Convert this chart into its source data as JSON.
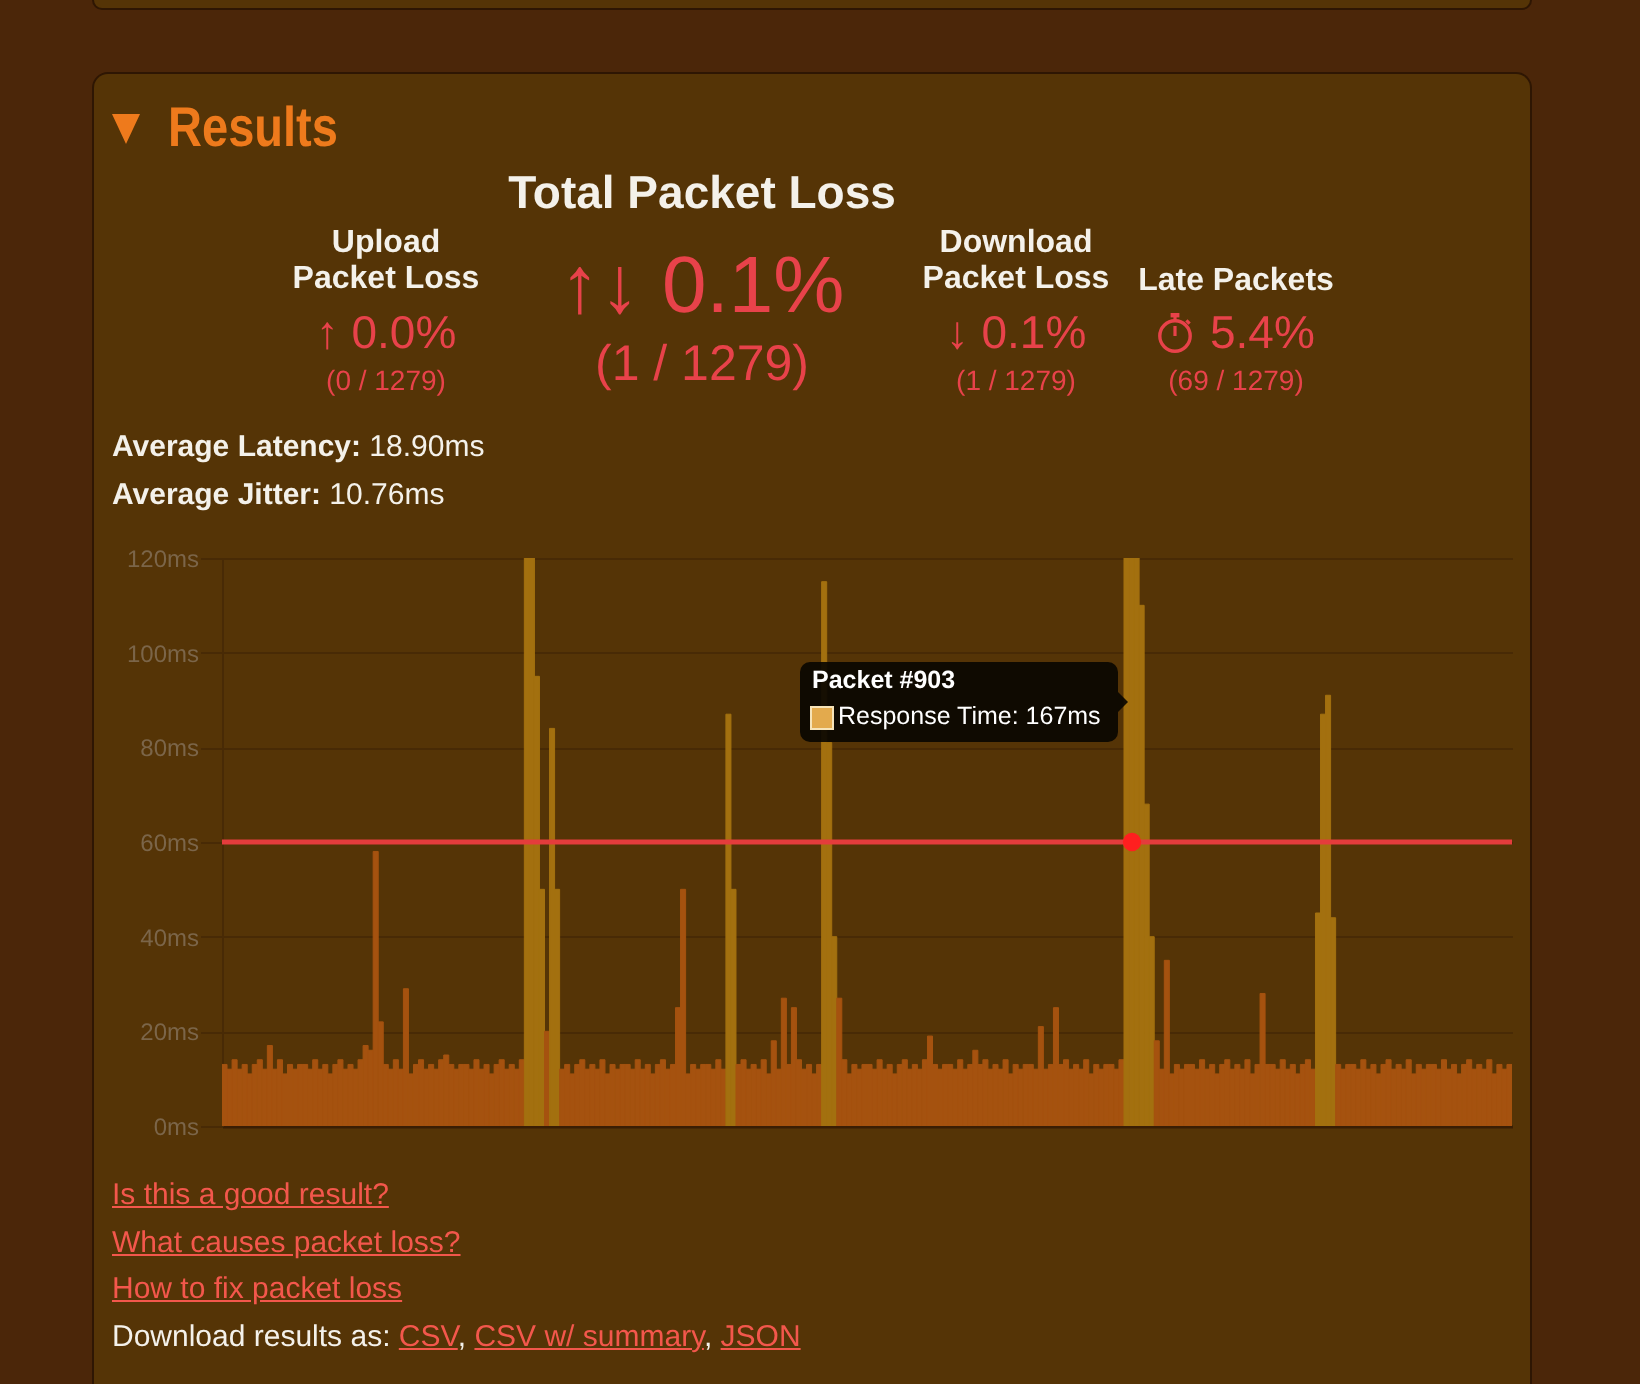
{
  "chart_data": {
    "type": "bar",
    "title": "Results",
    "annotations": [
      "Total Packet Loss",
      "↑↓ 0.1%",
      "(1 / 1279)",
      "Upload Packet Loss",
      "↑ 0.0%",
      "(0 / 1279)",
      "Download Packet Loss",
      "↓ 0.1%",
      "(1 / 1279)",
      "Late Packets",
      "5.4%",
      "(69 / 1279)",
      "Average Latency: 18.90ms",
      "Average Jitter: 10.76ms",
      "Packet #903",
      "Response Time: 167ms",
      "Is this a good result?",
      "What causes packet loss?",
      "How to fix packet loss",
      "Download results as: CSV, CSV w/ summary, JSON"
    ],
    "categories": [
      null,
      null,
      null,
      null,
      null,
      null,
      null,
      null,
      null,
      null,
      null,
      null,
      null,
      null,
      null,
      null,
      null,
      null,
      null,
      null,
      null,
      null,
      null,
      null,
      null,
      null,
      null,
      null,
      null,
      null,
      null,
      null,
      null,
      null,
      null,
      null,
      null,
      null,
      null,
      null,
      null,
      null,
      null,
      null,
      null,
      null,
      null,
      null,
      null,
      null,
      null,
      null,
      null,
      null,
      null,
      null,
      null,
      null,
      null,
      null,
      null,
      null,
      null,
      null,
      null,
      null,
      null,
      null,
      null,
      null,
      null,
      null,
      null,
      null,
      null,
      null,
      null,
      null,
      null,
      null,
      null,
      null,
      null,
      null,
      null,
      null,
      null,
      null,
      null,
      null,
      null,
      null,
      null,
      null,
      null,
      null,
      null,
      null,
      null,
      null,
      null,
      null,
      null,
      null,
      null,
      null,
      null,
      null,
      null,
      null,
      null,
      null,
      null,
      null,
      null,
      null,
      null,
      null,
      null,
      null,
      null,
      null,
      null,
      null,
      null,
      null,
      null,
      null,
      null,
      null,
      null,
      null,
      null,
      null,
      null,
      null,
      null,
      null,
      null,
      null,
      null,
      null,
      null,
      null,
      null,
      null,
      null,
      null,
      null,
      null,
      null,
      null,
      null,
      null,
      null,
      null,
      null,
      null,
      null,
      null,
      null,
      null,
      null,
      null,
      null,
      null,
      null,
      null,
      null,
      null,
      null,
      null,
      null,
      null,
      null,
      null,
      null,
      null,
      null,
      null,
      null,
      null,
      null,
      null,
      null,
      null,
      null,
      null,
      null,
      null,
      null,
      null,
      null,
      null,
      null,
      null,
      null,
      null,
      null,
      null,
      null,
      null,
      null,
      null,
      null,
      null,
      null,
      null,
      null,
      null,
      null,
      null,
      null,
      null,
      null,
      null,
      null,
      null,
      null,
      null,
      null,
      null,
      null,
      null,
      null,
      null,
      null,
      null,
      null,
      null,
      null,
      null,
      null,
      null,
      null,
      null,
      null,
      null,
      null,
      null,
      null,
      null,
      null,
      null,
      null,
      null,
      null,
      null,
      null,
      null,
      null,
      null,
      null,
      null,
      null,
      null
    ],
    "values": [
      13,
      12,
      14,
      12,
      13,
      11,
      13,
      14,
      12,
      17,
      12,
      14,
      11,
      13,
      12,
      13,
      13,
      12,
      14,
      12,
      13,
      11,
      13,
      14,
      12,
      13,
      12,
      14,
      17,
      16,
      58,
      22,
      13,
      12,
      14,
      12,
      29,
      11,
      13,
      14,
      12,
      13,
      12,
      14,
      15,
      13,
      12,
      13,
      13,
      12,
      14,
      12,
      13,
      11,
      13,
      14,
      12,
      13,
      12,
      14,
      120,
      120,
      95,
      50,
      20,
      84,
      50,
      12,
      13,
      11,
      13,
      14,
      12,
      13,
      12,
      14,
      11,
      13,
      12,
      13,
      13,
      12,
      14,
      12,
      13,
      11,
      13,
      14,
      12,
      13,
      25,
      50,
      11,
      13,
      12,
      13,
      13,
      12,
      14,
      12,
      87,
      50,
      13,
      14,
      12,
      13,
      12,
      14,
      11,
      18,
      12,
      27,
      13,
      25,
      14,
      12,
      13,
      11,
      13,
      115,
      81,
      40,
      27,
      14,
      11,
      13,
      12,
      13,
      13,
      12,
      14,
      12,
      13,
      11,
      13,
      14,
      12,
      13,
      12,
      14,
      19,
      13,
      12,
      13,
      13,
      12,
      14,
      12,
      13,
      16,
      13,
      14,
      12,
      13,
      12,
      14,
      11,
      13,
      12,
      13,
      13,
      12,
      21,
      12,
      13,
      25,
      13,
      14,
      12,
      13,
      12,
      14,
      11,
      13,
      12,
      13,
      13,
      12,
      14,
      120,
      120,
      120,
      110,
      68,
      40,
      18,
      12,
      35,
      11,
      13,
      12,
      13,
      13,
      12,
      14,
      12,
      13,
      11,
      13,
      14,
      12,
      13,
      12,
      14,
      11,
      13,
      28,
      13,
      13,
      12,
      14,
      12,
      13,
      11,
      13,
      14,
      12,
      45,
      87,
      91,
      44,
      13,
      12,
      13,
      13,
      12,
      14,
      12,
      13,
      11,
      13,
      14,
      12,
      13,
      12,
      14,
      11,
      13,
      12,
      13,
      13,
      12,
      14,
      12,
      13,
      11,
      13,
      14,
      12,
      13,
      12,
      14,
      11,
      13,
      12,
      13
    ],
    "colors": [
      "#a5520f",
      "#a5520f",
      "#a5520f",
      "#a5520f",
      "#a5520f",
      "#a5520f",
      "#a5520f",
      "#a5520f",
      "#a5520f",
      "#a5520f",
      "#a5520f",
      "#a5520f",
      "#a5520f",
      "#a5520f",
      "#a5520f",
      "#a5520f",
      "#a5520f",
      "#a5520f",
      "#a5520f",
      "#a5520f",
      "#a5520f",
      "#a5520f",
      "#a5520f",
      "#a5520f",
      "#a5520f",
      "#a5520f",
      "#a5520f",
      "#a5520f",
      "#a5520f",
      "#a5520f",
      "#a5520f",
      "#a5520f",
      "#a5520f",
      "#a5520f",
      "#a5520f",
      "#a5520f",
      "#a5520f",
      "#a5520f",
      "#a5520f",
      "#a5520f",
      "#a5520f",
      "#a5520f",
      "#a5520f",
      "#a5520f",
      "#a5520f",
      "#a5520f",
      "#a5520f",
      "#a5520f",
      "#a5520f",
      "#a5520f",
      "#a5520f",
      "#a5520f",
      "#a5520f",
      "#a5520f",
      "#a5520f",
      "#a5520f",
      "#a5520f",
      "#a5520f",
      "#a5520f",
      "#a5520f",
      "#a3700f",
      "#a3700f",
      "#a3700f",
      "#a3700f",
      "#a5520f",
      "#a3700f",
      "#a3700f",
      "#a5520f",
      "#a5520f",
      "#a5520f",
      "#a5520f",
      "#a5520f",
      "#a5520f",
      "#a5520f",
      "#a5520f",
      "#a5520f",
      "#a5520f",
      "#a5520f",
      "#a5520f",
      "#a5520f",
      "#a5520f",
      "#a5520f",
      "#a5520f",
      "#a5520f",
      "#a5520f",
      "#a5520f",
      "#a5520f",
      "#a5520f",
      "#a5520f",
      "#a5520f",
      "#a5520f",
      "#a5520f",
      "#a5520f",
      "#a5520f",
      "#a5520f",
      "#a5520f",
      "#a5520f",
      "#a5520f",
      "#a5520f",
      "#a5520f",
      "#a3700f",
      "#a3700f",
      "#a5520f",
      "#a5520f",
      "#a5520f",
      "#a5520f",
      "#a5520f",
      "#a5520f",
      "#a5520f",
      "#a5520f",
      "#a5520f",
      "#a5520f",
      "#a5520f",
      "#a5520f",
      "#a5520f",
      "#a5520f",
      "#a5520f",
      "#a5520f",
      "#a5520f",
      "#a3700f",
      "#a3700f",
      "#a3700f",
      "#a5520f",
      "#a5520f",
      "#a5520f",
      "#a5520f",
      "#a5520f",
      "#a5520f",
      "#a5520f",
      "#a5520f",
      "#a5520f",
      "#a5520f",
      "#a5520f",
      "#a5520f",
      "#a5520f",
      "#a5520f",
      "#a5520f",
      "#a5520f",
      "#a5520f",
      "#a5520f",
      "#a5520f",
      "#a5520f",
      "#a5520f",
      "#a5520f",
      "#a5520f",
      "#a5520f",
      "#a5520f",
      "#a5520f",
      "#a5520f",
      "#a5520f",
      "#a5520f",
      "#a5520f",
      "#a5520f",
      "#a5520f",
      "#a5520f",
      "#a5520f",
      "#a5520f",
      "#a5520f",
      "#a5520f",
      "#a5520f",
      "#a5520f",
      "#a5520f",
      "#a5520f",
      "#a5520f",
      "#a5520f",
      "#a5520f",
      "#a5520f",
      "#a5520f",
      "#a5520f",
      "#a5520f",
      "#a5520f",
      "#a5520f",
      "#a5520f",
      "#a5520f",
      "#a5520f",
      "#a5520f",
      "#a5520f",
      "#a5520f",
      "#a5520f",
      "#a3700f",
      "#a3700f",
      "#a3700f",
      "#a3700f",
      "#a3700f",
      "#a3700f",
      "#a5520f",
      "#a5520f",
      "#a5520f",
      "#a5520f",
      "#a5520f",
      "#a5520f",
      "#a5520f",
      "#a5520f",
      "#a5520f",
      "#a5520f",
      "#a5520f",
      "#a5520f",
      "#a5520f",
      "#a5520f",
      "#a5520f",
      "#a5520f",
      "#a5520f",
      "#a5520f",
      "#a5520f",
      "#a5520f",
      "#a5520f",
      "#a5520f",
      "#a5520f",
      "#a5520f",
      "#a5520f",
      "#a5520f",
      "#a5520f",
      "#a5520f",
      "#a5520f",
      "#a5520f",
      "#a5520f",
      "#a5520f",
      "#a3700f",
      "#a3700f",
      "#a3700f",
      "#a3700f",
      "#a5520f",
      "#a5520f",
      "#a5520f",
      "#a5520f",
      "#a5520f",
      "#a5520f",
      "#a5520f",
      "#a5520f",
      "#a5520f",
      "#a5520f",
      "#a5520f",
      "#a5520f",
      "#a5520f",
      "#a5520f",
      "#a5520f",
      "#a5520f",
      "#a5520f",
      "#a5520f",
      "#a5520f",
      "#a5520f",
      "#a5520f",
      "#a5520f",
      "#a5520f",
      "#a5520f",
      "#a5520f",
      "#a5520f",
      "#a5520f",
      "#a5520f",
      "#a5520f",
      "#a5520f",
      "#a5520f",
      "#a5520f",
      "#a5520f",
      "#a5520f",
      "#a5520f"
    ],
    "ylim": [
      0,
      120
    ],
    "yticks": [
      {
        "value": 0,
        "label": "0ms"
      },
      {
        "value": 20,
        "label": "20ms"
      },
      {
        "value": 40,
        "label": "40ms"
      },
      {
        "value": 60,
        "label": "60ms"
      },
      {
        "value": 80,
        "label": "80ms"
      },
      {
        "value": 100,
        "label": "100ms"
      },
      {
        "value": 120,
        "label": "120ms"
      }
    ],
    "ref_lines": [
      {
        "axis": "y",
        "value": 60,
        "color": "#e43c3c"
      }
    ],
    "grid": "y",
    "tick_labels": "y"
  }
}
